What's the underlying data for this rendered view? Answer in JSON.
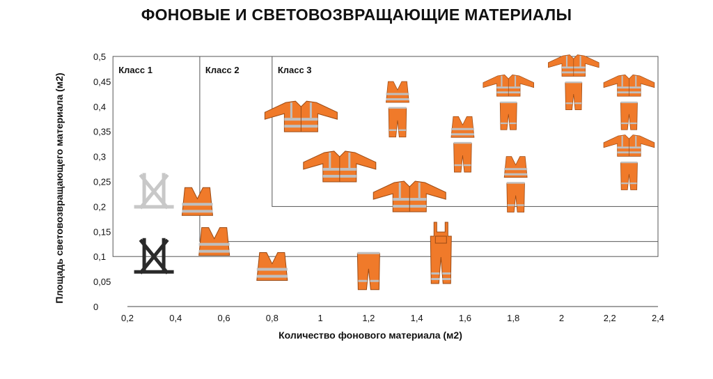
{
  "chart_data": {
    "type": "scatter",
    "title": "ФОНОВЫЕ И СВЕТОВОЗВРАЩАЮЩИЕ МАТЕРИАЛЫ",
    "xlabel": "Количество фонового материала (м2)",
    "ylabel": "Площадь световозвращающего материала (м2)",
    "xlim": [
      0.2,
      2.4
    ],
    "ylim": [
      0,
      0.5
    ],
    "x_ticks": [
      "0,2",
      "0,4",
      "0,6",
      "0,8",
      "1",
      "1,2",
      "1,4",
      "1,6",
      "1,8",
      "2",
      "2,2",
      "2,4"
    ],
    "y_ticks": [
      "0",
      "0,05",
      "0,1",
      "0,15",
      "0,2",
      "0,25",
      "0,3",
      "0,35",
      "0,4",
      "0,45",
      "0,5"
    ],
    "grid": false,
    "classes": [
      {
        "name": "Класс 1",
        "min_background": 0.14,
        "min_reflective": 0.1
      },
      {
        "name": "Класс 2",
        "min_background": 0.5,
        "min_reflective": 0.13
      },
      {
        "name": "Класс 3",
        "min_background": 0.8,
        "min_reflective": 0.2
      }
    ],
    "items": [
      {
        "garment": "harness",
        "x": 0.31,
        "y": 0.23,
        "color": "#c8c8c8"
      },
      {
        "garment": "harness",
        "x": 0.31,
        "y": 0.1,
        "color": "#2a2a2a"
      },
      {
        "garment": "vest",
        "x": 0.49,
        "y": 0.21
      },
      {
        "garment": "vest",
        "x": 0.56,
        "y": 0.13
      },
      {
        "garment": "vest",
        "x": 0.8,
        "y": 0.08
      },
      {
        "garment": "trousers",
        "x": 1.2,
        "y": 0.07
      },
      {
        "garment": "bib-overalls",
        "x": 1.5,
        "y": 0.11
      },
      {
        "garment": "jacket",
        "x": 0.92,
        "y": 0.38
      },
      {
        "garment": "jacket",
        "x": 1.08,
        "y": 0.28
      },
      {
        "garment": "jacket",
        "x": 1.37,
        "y": 0.22
      },
      {
        "garment": "vest-and-trousers",
        "x": 1.32,
        "y": 0.39
      },
      {
        "garment": "vest-and-trousers",
        "x": 1.59,
        "y": 0.32
      },
      {
        "garment": "vest-and-trousers",
        "x": 1.81,
        "y": 0.24
      },
      {
        "garment": "jacket-and-trousers",
        "x": 1.78,
        "y": 0.4
      },
      {
        "garment": "jacket-and-trousers",
        "x": 2.05,
        "y": 0.44
      },
      {
        "garment": "jacket-and-trousers",
        "x": 2.28,
        "y": 0.4
      },
      {
        "garment": "jacket-and-trousers",
        "x": 2.28,
        "y": 0.28
      }
    ],
    "garment_color": "#f07a2a",
    "reflective_color": "#bfbfbf"
  }
}
